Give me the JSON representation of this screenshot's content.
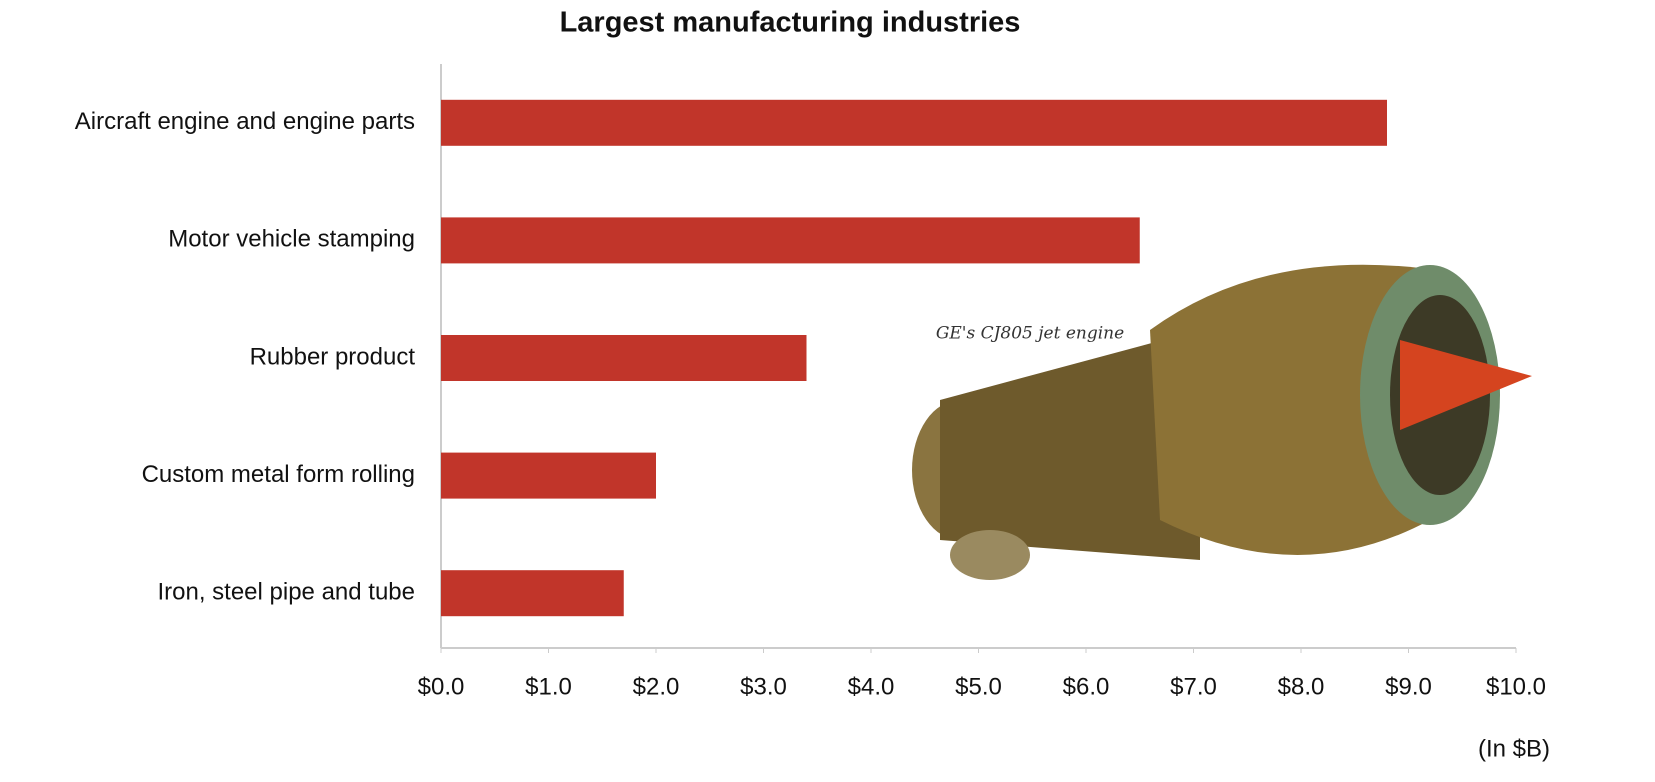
{
  "chart_data": {
    "type": "hbar",
    "title": "Largest manufacturing industries",
    "categories": [
      "Aircraft engine and engine parts",
      "Motor vehicle stamping",
      "Rubber product",
      "Custom metal form rolling",
      "Iron, steel pipe and tube"
    ],
    "values": [
      8.8,
      6.5,
      3.4,
      2.0,
      1.7
    ],
    "color": "#c1352a",
    "xlim": [
      0,
      10
    ],
    "xticks": [
      {
        "value": 0,
        "label": "$0.0"
      },
      {
        "value": 1,
        "label": "$1.0"
      },
      {
        "value": 2,
        "label": "$2.0"
      },
      {
        "value": 3,
        "label": "$3.0"
      },
      {
        "value": 4,
        "label": "$4.0"
      },
      {
        "value": 5,
        "label": "$5.0"
      },
      {
        "value": 6,
        "label": "$6.0"
      },
      {
        "value": 7,
        "label": "$7.0"
      },
      {
        "value": 8,
        "label": "$8.0"
      },
      {
        "value": 9,
        "label": "$9.0"
      },
      {
        "value": 10,
        "label": "$10.0"
      }
    ],
    "x_unit_label": "(In $B)",
    "annotation": "GE's CJ805 jet engine",
    "grid": false
  }
}
